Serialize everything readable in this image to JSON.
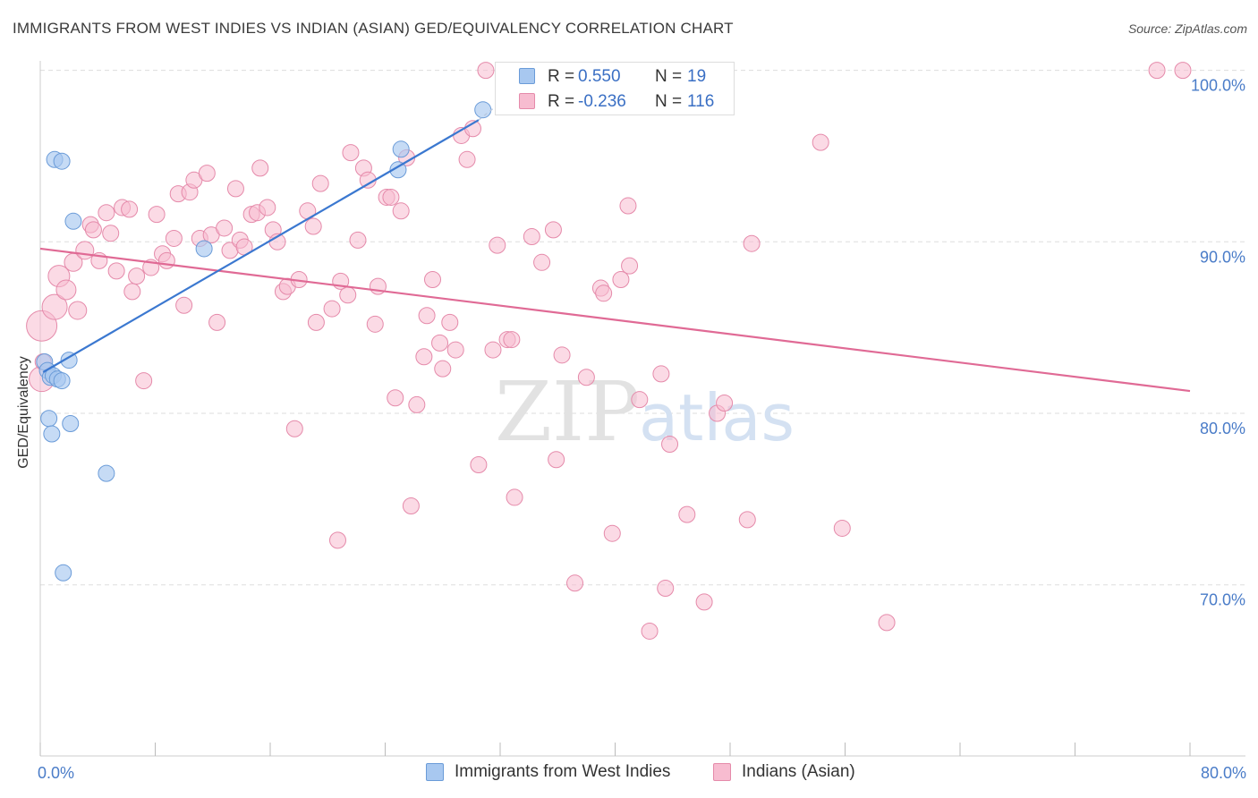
{
  "title": "IMMIGRANTS FROM WEST INDIES VS INDIAN (ASIAN) GED/EQUIVALENCY CORRELATION CHART",
  "source": "Source: ZipAtlas.com",
  "watermark": {
    "zip": "ZIP",
    "atlas": "atlas"
  },
  "legend_top": [
    {
      "r_label": "R =",
      "r_value": "0.550",
      "n_label": "N =",
      "n_value": "19"
    },
    {
      "r_label": "R =",
      "r_value": "-0.236",
      "n_label": "N =",
      "n_value": "116"
    }
  ],
  "legend_bottom": [
    {
      "label": "Immigrants from West Indies"
    },
    {
      "label": "Indians (Asian)"
    }
  ],
  "colors": {
    "blue_fill": "#a8c8f0",
    "blue_stroke": "#6a9bd8",
    "blue_line": "#3b78d0",
    "pink_fill": "#f7bcd0",
    "pink_stroke": "#e58aaa",
    "pink_line": "#e06a95",
    "tick_text": "#4a7cc8",
    "grid": "#dddddd"
  },
  "chart_data": {
    "type": "scatter",
    "title": "IMMIGRANTS FROM WEST INDIES VS INDIAN (ASIAN) GED/EQUIVALENCY CORRELATION CHART",
    "xlabel": "",
    "ylabel": "GED/Equivalency",
    "xlim": [
      0,
      80
    ],
    "ylim": [
      60.5,
      101.5
    ],
    "x_tick_labels": [
      "0.0%",
      "80.0%"
    ],
    "y_ticks": [
      70,
      80,
      90,
      100
    ],
    "y_tick_labels": [
      "70.0%",
      "80.0%",
      "90.0%",
      "100.0%"
    ],
    "grid": true,
    "legend_position": "top-center",
    "series": [
      {
        "name": "Immigrants from West Indies",
        "r": 0.55,
        "n": 19,
        "trend": {
          "x": [
            0.2,
            30.5
          ],
          "y": [
            82.4,
            97.1
          ],
          "dashed_to": [
            32.0,
            98.1
          ]
        },
        "points": [
          {
            "x": 0.3,
            "y": 83.0,
            "s": 9
          },
          {
            "x": 0.5,
            "y": 82.5,
            "s": 9
          },
          {
            "x": 0.7,
            "y": 82.1,
            "s": 9
          },
          {
            "x": 0.9,
            "y": 82.2,
            "s": 9
          },
          {
            "x": 1.2,
            "y": 82.0,
            "s": 9
          },
          {
            "x": 1.5,
            "y": 81.9,
            "s": 9
          },
          {
            "x": 0.6,
            "y": 79.7,
            "s": 9
          },
          {
            "x": 0.8,
            "y": 78.8,
            "s": 9
          },
          {
            "x": 2.1,
            "y": 79.4,
            "s": 9
          },
          {
            "x": 1.0,
            "y": 94.8,
            "s": 9
          },
          {
            "x": 1.5,
            "y": 94.7,
            "s": 9
          },
          {
            "x": 2.3,
            "y": 91.2,
            "s": 9
          },
          {
            "x": 2.0,
            "y": 83.1,
            "s": 9
          },
          {
            "x": 4.6,
            "y": 76.5,
            "s": 9
          },
          {
            "x": 1.6,
            "y": 70.7,
            "s": 9
          },
          {
            "x": 11.4,
            "y": 89.6,
            "s": 9
          },
          {
            "x": 24.9,
            "y": 94.2,
            "s": 9
          },
          {
            "x": 25.1,
            "y": 95.4,
            "s": 9
          },
          {
            "x": 30.8,
            "y": 97.7,
            "s": 9
          }
        ]
      },
      {
        "name": "Indians (Asian)",
        "r": -0.236,
        "n": 116,
        "trend": {
          "x": [
            0.0,
            80.0
          ],
          "y": [
            89.6,
            81.3
          ]
        },
        "points": [
          {
            "x": 0.1,
            "y": 85.1,
            "s": 17
          },
          {
            "x": 0.1,
            "y": 82.0,
            "s": 14
          },
          {
            "x": 0.2,
            "y": 83.0,
            "s": 9
          },
          {
            "x": 1.0,
            "y": 86.2,
            "s": 14
          },
          {
            "x": 1.3,
            "y": 88.0,
            "s": 12
          },
          {
            "x": 1.8,
            "y": 87.2,
            "s": 11
          },
          {
            "x": 2.3,
            "y": 88.8,
            "s": 10
          },
          {
            "x": 2.6,
            "y": 86.0,
            "s": 10
          },
          {
            "x": 3.1,
            "y": 89.5,
            "s": 10
          },
          {
            "x": 3.5,
            "y": 91.0,
            "s": 9
          },
          {
            "x": 3.7,
            "y": 90.7,
            "s": 9
          },
          {
            "x": 4.1,
            "y": 88.9,
            "s": 9
          },
          {
            "x": 4.6,
            "y": 91.7,
            "s": 9
          },
          {
            "x": 4.9,
            "y": 90.5,
            "s": 9
          },
          {
            "x": 5.3,
            "y": 88.3,
            "s": 9
          },
          {
            "x": 5.7,
            "y": 92.0,
            "s": 9
          },
          {
            "x": 6.2,
            "y": 91.9,
            "s": 9
          },
          {
            "x": 6.4,
            "y": 87.1,
            "s": 9
          },
          {
            "x": 6.7,
            "y": 88.0,
            "s": 9
          },
          {
            "x": 7.2,
            "y": 81.9,
            "s": 9
          },
          {
            "x": 7.7,
            "y": 88.5,
            "s": 9
          },
          {
            "x": 8.1,
            "y": 91.6,
            "s": 9
          },
          {
            "x": 8.5,
            "y": 89.3,
            "s": 9
          },
          {
            "x": 8.8,
            "y": 88.9,
            "s": 9
          },
          {
            "x": 9.3,
            "y": 90.2,
            "s": 9
          },
          {
            "x": 9.6,
            "y": 92.8,
            "s": 9
          },
          {
            "x": 10.0,
            "y": 86.3,
            "s": 9
          },
          {
            "x": 10.4,
            "y": 92.9,
            "s": 9
          },
          {
            "x": 10.7,
            "y": 93.6,
            "s": 9
          },
          {
            "x": 11.1,
            "y": 90.2,
            "s": 9
          },
          {
            "x": 11.6,
            "y": 94.0,
            "s": 9
          },
          {
            "x": 11.9,
            "y": 90.4,
            "s": 9
          },
          {
            "x": 12.3,
            "y": 85.3,
            "s": 9
          },
          {
            "x": 12.8,
            "y": 90.8,
            "s": 9
          },
          {
            "x": 13.2,
            "y": 89.5,
            "s": 9
          },
          {
            "x": 13.6,
            "y": 93.1,
            "s": 9
          },
          {
            "x": 13.9,
            "y": 90.1,
            "s": 9
          },
          {
            "x": 14.2,
            "y": 89.7,
            "s": 9
          },
          {
            "x": 14.7,
            "y": 91.6,
            "s": 9
          },
          {
            "x": 15.1,
            "y": 91.7,
            "s": 9
          },
          {
            "x": 15.3,
            "y": 94.3,
            "s": 9
          },
          {
            "x": 15.8,
            "y": 92.0,
            "s": 9
          },
          {
            "x": 16.2,
            "y": 90.7,
            "s": 9
          },
          {
            "x": 16.5,
            "y": 90.0,
            "s": 9
          },
          {
            "x": 16.9,
            "y": 87.1,
            "s": 9
          },
          {
            "x": 17.2,
            "y": 87.4,
            "s": 9
          },
          {
            "x": 17.7,
            "y": 79.1,
            "s": 9
          },
          {
            "x": 18.0,
            "y": 87.8,
            "s": 9
          },
          {
            "x": 18.6,
            "y": 91.8,
            "s": 9
          },
          {
            "x": 19.0,
            "y": 90.9,
            "s": 9
          },
          {
            "x": 19.2,
            "y": 85.3,
            "s": 9
          },
          {
            "x": 19.5,
            "y": 93.4,
            "s": 9
          },
          {
            "x": 20.3,
            "y": 86.1,
            "s": 9
          },
          {
            "x": 20.7,
            "y": 72.6,
            "s": 9
          },
          {
            "x": 20.9,
            "y": 87.7,
            "s": 9
          },
          {
            "x": 21.4,
            "y": 86.9,
            "s": 9
          },
          {
            "x": 21.6,
            "y": 95.2,
            "s": 9
          },
          {
            "x": 22.1,
            "y": 90.1,
            "s": 9
          },
          {
            "x": 22.5,
            "y": 94.3,
            "s": 9
          },
          {
            "x": 22.8,
            "y": 93.6,
            "s": 9
          },
          {
            "x": 23.3,
            "y": 85.2,
            "s": 9
          },
          {
            "x": 23.5,
            "y": 87.4,
            "s": 9
          },
          {
            "x": 24.1,
            "y": 92.6,
            "s": 9
          },
          {
            "x": 24.4,
            "y": 92.6,
            "s": 9
          },
          {
            "x": 24.7,
            "y": 80.9,
            "s": 9
          },
          {
            "x": 25.1,
            "y": 91.8,
            "s": 9
          },
          {
            "x": 25.5,
            "y": 94.9,
            "s": 9
          },
          {
            "x": 25.8,
            "y": 74.6,
            "s": 9
          },
          {
            "x": 26.2,
            "y": 80.5,
            "s": 9
          },
          {
            "x": 26.7,
            "y": 83.3,
            "s": 9
          },
          {
            "x": 26.9,
            "y": 85.7,
            "s": 9
          },
          {
            "x": 27.3,
            "y": 87.8,
            "s": 9
          },
          {
            "x": 27.8,
            "y": 84.1,
            "s": 9
          },
          {
            "x": 28.0,
            "y": 82.6,
            "s": 9
          },
          {
            "x": 28.5,
            "y": 85.3,
            "s": 9
          },
          {
            "x": 28.9,
            "y": 83.7,
            "s": 9
          },
          {
            "x": 29.3,
            "y": 96.2,
            "s": 9
          },
          {
            "x": 29.7,
            "y": 94.8,
            "s": 9
          },
          {
            "x": 30.1,
            "y": 96.6,
            "s": 9
          },
          {
            "x": 30.5,
            "y": 77.0,
            "s": 9
          },
          {
            "x": 31.0,
            "y": 100.0,
            "s": 9
          },
          {
            "x": 31.5,
            "y": 83.7,
            "s": 9
          },
          {
            "x": 31.8,
            "y": 89.8,
            "s": 9
          },
          {
            "x": 32.5,
            "y": 84.3,
            "s": 9
          },
          {
            "x": 32.8,
            "y": 84.3,
            "s": 9
          },
          {
            "x": 33.0,
            "y": 75.1,
            "s": 9
          },
          {
            "x": 34.2,
            "y": 90.3,
            "s": 9
          },
          {
            "x": 34.9,
            "y": 88.8,
            "s": 9
          },
          {
            "x": 35.7,
            "y": 90.7,
            "s": 9
          },
          {
            "x": 35.9,
            "y": 77.3,
            "s": 9
          },
          {
            "x": 36.3,
            "y": 83.4,
            "s": 9
          },
          {
            "x": 37.2,
            "y": 70.1,
            "s": 9
          },
          {
            "x": 38.0,
            "y": 82.1,
            "s": 9
          },
          {
            "x": 39.0,
            "y": 87.3,
            "s": 9
          },
          {
            "x": 39.2,
            "y": 87.0,
            "s": 9
          },
          {
            "x": 39.8,
            "y": 73.0,
            "s": 9
          },
          {
            "x": 40.4,
            "y": 87.8,
            "s": 9
          },
          {
            "x": 40.9,
            "y": 92.1,
            "s": 9
          },
          {
            "x": 41.0,
            "y": 88.6,
            "s": 9
          },
          {
            "x": 41.7,
            "y": 80.8,
            "s": 9
          },
          {
            "x": 42.4,
            "y": 67.3,
            "s": 9
          },
          {
            "x": 43.2,
            "y": 82.3,
            "s": 9
          },
          {
            "x": 43.5,
            "y": 69.8,
            "s": 9
          },
          {
            "x": 43.8,
            "y": 78.2,
            "s": 9
          },
          {
            "x": 45.0,
            "y": 74.1,
            "s": 9
          },
          {
            "x": 46.2,
            "y": 69.0,
            "s": 9
          },
          {
            "x": 47.1,
            "y": 80.0,
            "s": 9
          },
          {
            "x": 47.6,
            "y": 80.6,
            "s": 9
          },
          {
            "x": 47.7,
            "y": 100.0,
            "s": 9
          },
          {
            "x": 49.2,
            "y": 73.8,
            "s": 9
          },
          {
            "x": 49.5,
            "y": 89.9,
            "s": 9
          },
          {
            "x": 54.3,
            "y": 95.8,
            "s": 9
          },
          {
            "x": 55.8,
            "y": 73.3,
            "s": 9
          },
          {
            "x": 58.9,
            "y": 67.8,
            "s": 9
          },
          {
            "x": 77.7,
            "y": 100.0,
            "s": 9
          },
          {
            "x": 79.5,
            "y": 100.0,
            "s": 9
          }
        ]
      }
    ]
  }
}
